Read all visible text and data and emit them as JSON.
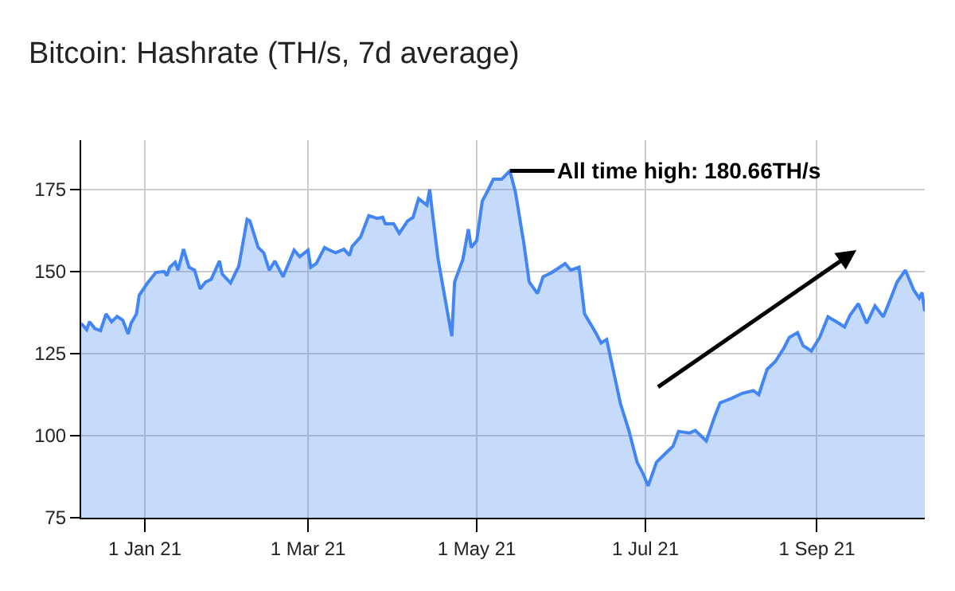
{
  "chart_data": {
    "type": "area",
    "title": "Bitcoin: Hashrate (TH/s, 7d average)",
    "x": [
      "2020-12-09",
      "2020-12-11",
      "2020-12-12",
      "2020-12-14",
      "2020-12-16",
      "2020-12-18",
      "2020-12-20",
      "2020-12-22",
      "2020-12-24",
      "2020-12-26",
      "2020-12-27",
      "2020-12-29",
      "2020-12-30",
      "2021-01-02",
      "2021-01-05",
      "2021-01-08",
      "2021-01-09",
      "2021-01-10",
      "2021-01-12",
      "2021-01-13",
      "2021-01-15",
      "2021-01-17",
      "2021-01-19",
      "2021-01-21",
      "2021-01-23",
      "2021-01-25",
      "2021-01-28",
      "2021-01-29",
      "2021-02-01",
      "2021-02-04",
      "2021-02-07",
      "2021-02-08",
      "2021-02-11",
      "2021-02-13",
      "2021-02-15",
      "2021-02-17",
      "2021-02-20",
      "2021-02-24",
      "2021-02-26",
      "2021-03-01",
      "2021-03-02",
      "2021-03-04",
      "2021-03-07",
      "2021-03-08",
      "2021-03-11",
      "2021-03-14",
      "2021-03-16",
      "2021-03-17",
      "2021-03-20",
      "2021-03-23",
      "2021-03-26",
      "2021-03-28",
      "2021-03-29",
      "2021-04-01",
      "2021-04-03",
      "2021-04-06",
      "2021-04-08",
      "2021-04-10",
      "2021-04-13",
      "2021-04-14",
      "2021-04-15",
      "2021-04-17",
      "2021-04-19",
      "2021-04-22",
      "2021-04-23",
      "2021-04-26",
      "2021-04-28",
      "2021-04-29",
      "2021-05-01",
      "2021-05-03",
      "2021-05-05",
      "2021-05-07",
      "2021-05-10",
      "2021-05-13",
      "2021-05-15",
      "2021-05-18",
      "2021-05-20",
      "2021-05-23",
      "2021-05-25",
      "2021-05-28",
      "2021-06-02",
      "2021-06-04",
      "2021-06-07",
      "2021-06-09",
      "2021-06-13",
      "2021-06-15",
      "2021-06-17",
      "2021-06-22",
      "2021-06-25",
      "2021-06-28",
      "2021-06-30",
      "2021-07-02",
      "2021-07-05",
      "2021-07-09",
      "2021-07-11",
      "2021-07-13",
      "2021-07-17",
      "2021-07-19",
      "2021-07-23",
      "2021-07-26",
      "2021-07-28",
      "2021-08-01",
      "2021-08-05",
      "2021-08-09",
      "2021-08-11",
      "2021-08-14",
      "2021-08-17",
      "2021-08-20",
      "2021-08-22",
      "2021-08-25",
      "2021-08-27",
      "2021-08-30",
      "2021-09-02",
      "2021-09-05",
      "2021-09-09",
      "2021-09-11",
      "2021-09-13",
      "2021-09-16",
      "2021-09-19",
      "2021-09-22",
      "2021-09-25",
      "2021-09-27",
      "2021-09-30",
      "2021-10-03",
      "2021-10-06",
      "2021-10-08",
      "2021-10-09",
      "2021-10-10"
    ],
    "series": [
      {
        "color": "#4285f4",
        "values": [
          134.2,
          132.3,
          134.7,
          132.6,
          132,
          137.1,
          134.7,
          136.3,
          135.2,
          131,
          134.2,
          137.1,
          142.8,
          146.5,
          149.7,
          150,
          148.7,
          151.3,
          152.8,
          150.4,
          156.8,
          151.3,
          150.4,
          144.7,
          146.8,
          147.6,
          153.2,
          149.2,
          146.5,
          151.7,
          165.9,
          165.4,
          157.3,
          155.7,
          150.4,
          153.2,
          148.4,
          156.5,
          154.5,
          156.5,
          151.3,
          152.4,
          157.3,
          156.8,
          155.7,
          156.8,
          154.9,
          157.7,
          160.5,
          167,
          166.2,
          166.5,
          164.5,
          164.5,
          161.6,
          165.4,
          166.5,
          172.2,
          170.2,
          175,
          167.8,
          154,
          144.4,
          130.3,
          146.8,
          153.7,
          162.9,
          157.3,
          159.4,
          171.4,
          174.6,
          178.1,
          178.1,
          180.66,
          174.2,
          158.9,
          146.8,
          143.3,
          148.4,
          149.6,
          152.4,
          150.4,
          151.3,
          137.1,
          131.4,
          128.2,
          129.3,
          109.7,
          101.6,
          91.9,
          88.7,
          84.7,
          91.9,
          95.2,
          96.8,
          101.3,
          100.8,
          101.6,
          98.4,
          105.7,
          110,
          111.3,
          112.9,
          113.7,
          112.5,
          120.2,
          122.6,
          126.6,
          129.9,
          131.4,
          127.4,
          125.8,
          129.9,
          136.2,
          134.2,
          133.1,
          136.7,
          140.2,
          134.2,
          139.5,
          136.2,
          140.3,
          146.8,
          150.4,
          144.4,
          141.9,
          143.6,
          137.9
        ]
      }
    ],
    "xlim": [
      "2020-12-09",
      "2021-10-10"
    ],
    "xticks": [
      {
        "value": "2021-01-01",
        "label": "1 Jan 21"
      },
      {
        "value": "2021-03-01",
        "label": "1 Mar 21"
      },
      {
        "value": "2021-05-01",
        "label": "1 May 21"
      },
      {
        "value": "2021-07-01",
        "label": "1 Jul 21"
      },
      {
        "value": "2021-09-01",
        "label": "1 Sep 21"
      }
    ],
    "ylim": [
      75,
      190
    ],
    "yticks": [
      75,
      100,
      125,
      150,
      175
    ],
    "grid": true,
    "annotations": [
      {
        "text": "All time high: 180.66TH/s",
        "x": "2021-05-13",
        "y": 180.66
      }
    ]
  }
}
